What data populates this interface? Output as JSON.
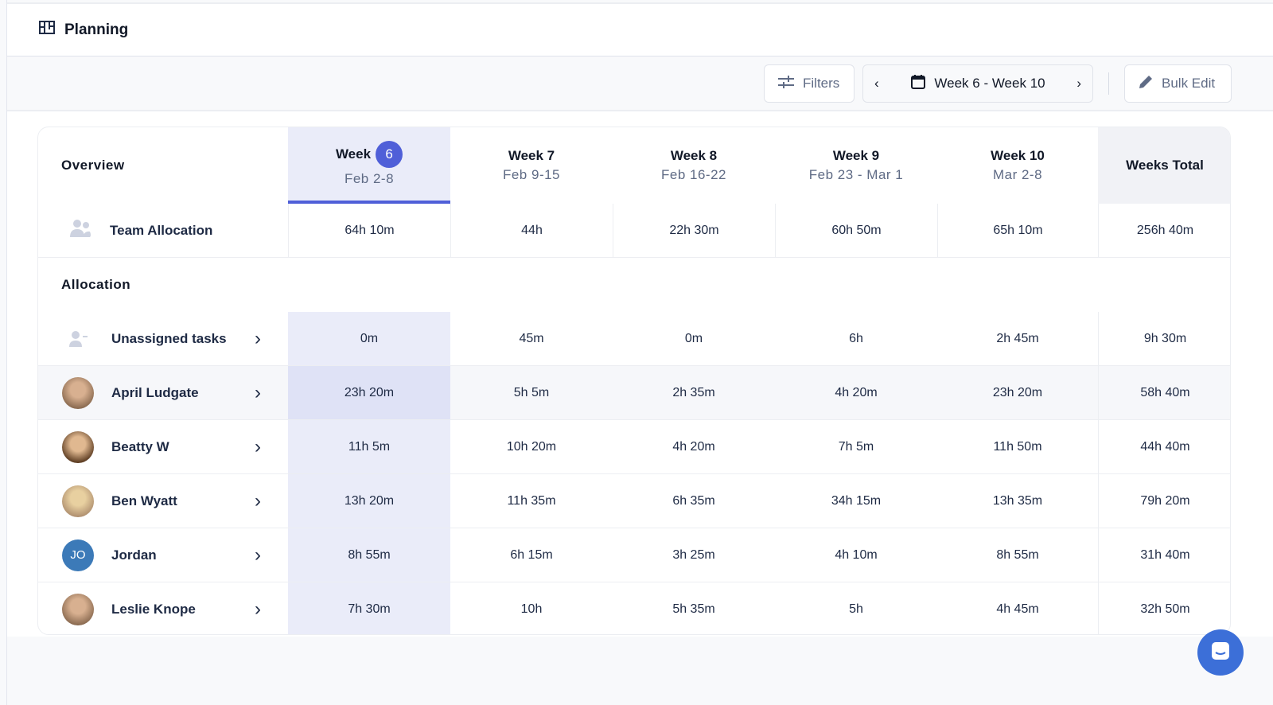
{
  "header": {
    "title": "Planning",
    "icon": "board-icon"
  },
  "toolbar": {
    "filters_label": "Filters",
    "week_range": "Week 6 - Week 10",
    "bulk_edit_label": "Bulk Edit"
  },
  "colors": {
    "accent": "#4f5fd8",
    "selected_column": "#eaecf9",
    "jordan_avatar": "#3c7ab8"
  },
  "table": {
    "overview_label": "Overview",
    "total_label": "Weeks Total",
    "weeks": [
      {
        "label": "Week",
        "badge": "6",
        "dates": "Feb 2-8",
        "selected": true
      },
      {
        "label": "Week 7",
        "dates": "Feb 9-15"
      },
      {
        "label": "Week 8",
        "dates": "Feb 16-22"
      },
      {
        "label": "Week 9",
        "dates": "Feb 23 - Mar 1"
      },
      {
        "label": "Week 10",
        "dates": "Mar 2-8"
      }
    ],
    "team": {
      "label": "Team Allocation",
      "values": [
        "64h 10m",
        "44h",
        "22h 30m",
        "60h 50m",
        "65h 10m"
      ],
      "total": "256h 40m"
    },
    "allocation_label": "Allocation",
    "rows": [
      {
        "name": "Unassigned tasks",
        "avatar": "unassigned",
        "values": [
          "0m",
          "45m",
          "0m",
          "6h",
          "2h 45m"
        ],
        "total": "9h 30m"
      },
      {
        "name": "April Ludgate",
        "avatar": "photo",
        "values": [
          "23h 20m",
          "5h 5m",
          "2h 35m",
          "4h 20m",
          "23h 20m"
        ],
        "total": "58h 40m",
        "highlighted": true
      },
      {
        "name": "Beatty W",
        "avatar": "photo",
        "values": [
          "11h 5m",
          "10h 20m",
          "4h 20m",
          "7h 5m",
          "11h 50m"
        ],
        "total": "44h 40m"
      },
      {
        "name": "Ben Wyatt",
        "avatar": "photo",
        "values": [
          "13h 20m",
          "11h 35m",
          "6h 35m",
          "34h 15m",
          "13h 35m"
        ],
        "total": "79h 20m"
      },
      {
        "name": "Jordan",
        "avatar": "initials",
        "initials": "JO",
        "values": [
          "8h 55m",
          "6h 15m",
          "3h 25m",
          "4h 10m",
          "8h 55m"
        ],
        "total": "31h 40m"
      },
      {
        "name": "Leslie Knope",
        "avatar": "photo",
        "values": [
          "7h 30m",
          "10h",
          "5h 35m",
          "5h",
          "4h 45m"
        ],
        "total": "32h 50m"
      }
    ]
  }
}
